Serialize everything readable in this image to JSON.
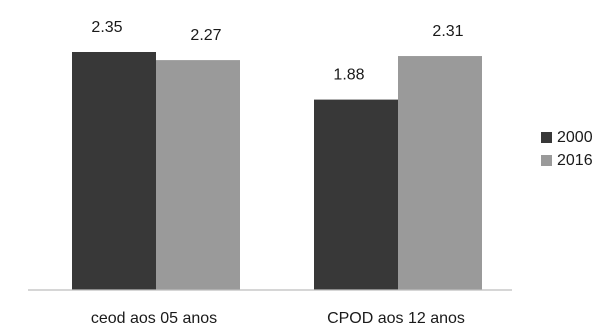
{
  "chart_data": {
    "type": "bar",
    "categories": [
      "ceod aos 05 anos",
      "CPOD aos 12 anos"
    ],
    "series": [
      {
        "name": "2000",
        "values": [
          2.35,
          1.88
        ],
        "color": "#383838"
      },
      {
        "name": "2016",
        "values": [
          2.27,
          2.31
        ],
        "color": "#9a9a9a"
      }
    ],
    "data_labels": [
      [
        "2.35",
        "1.88"
      ],
      [
        "2.27",
        "2.31"
      ]
    ],
    "title": "",
    "xlabel": "",
    "ylabel": "",
    "ylim": [
      0,
      2.6
    ],
    "grid": false,
    "legend": "right"
  }
}
